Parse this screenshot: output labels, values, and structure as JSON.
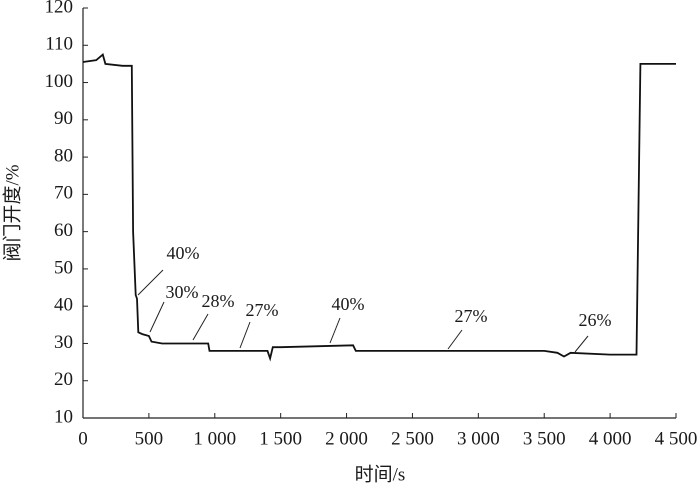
{
  "chart_data": {
    "type": "line",
    "x_label": "时间/s",
    "y_label": "阀门开度/%",
    "x": [
      0,
      100,
      150,
      170,
      300,
      370,
      380,
      400,
      410,
      420,
      450,
      500,
      520,
      600,
      950,
      960,
      1400,
      1420,
      1440,
      1500,
      2050,
      2070,
      3500,
      3600,
      3650,
      3700,
      4000,
      4200,
      4230,
      4300,
      4500
    ],
    "series": [
      {
        "color": "#111111",
        "values": [
          105.5,
          106,
          107.5,
          105,
          104.5,
          104.5,
          60,
          43,
          42,
          33,
          32.5,
          32,
          30.5,
          30,
          30,
          28,
          28,
          26,
          29,
          29,
          29.5,
          28,
          28,
          27.5,
          26.5,
          27.5,
          27,
          27,
          105,
          105,
          105
        ]
      }
    ],
    "xlim": [
      0,
      4500
    ],
    "xticks": [
      0,
      500,
      {
        "value": 1000,
        "label": "1 000"
      },
      {
        "value": 1500,
        "label": "1 500"
      },
      {
        "value": 2000,
        "label": "2 000"
      },
      {
        "value": 2500,
        "label": "2 500"
      },
      {
        "value": 3000,
        "label": "3 000"
      },
      {
        "value": 3500,
        "label": "3 500"
      },
      {
        "value": 4000,
        "label": "4 000"
      },
      {
        "value": 4500,
        "label": "4 500"
      }
    ],
    "ylim": [
      10,
      120
    ],
    "yticks": [
      10,
      20,
      30,
      40,
      50,
      60,
      70,
      80,
      90,
      100,
      110,
      120
    ],
    "annotations": [
      "40%",
      "30%",
      "28%",
      "27%",
      "40%",
      "27%",
      "26%"
    ]
  }
}
